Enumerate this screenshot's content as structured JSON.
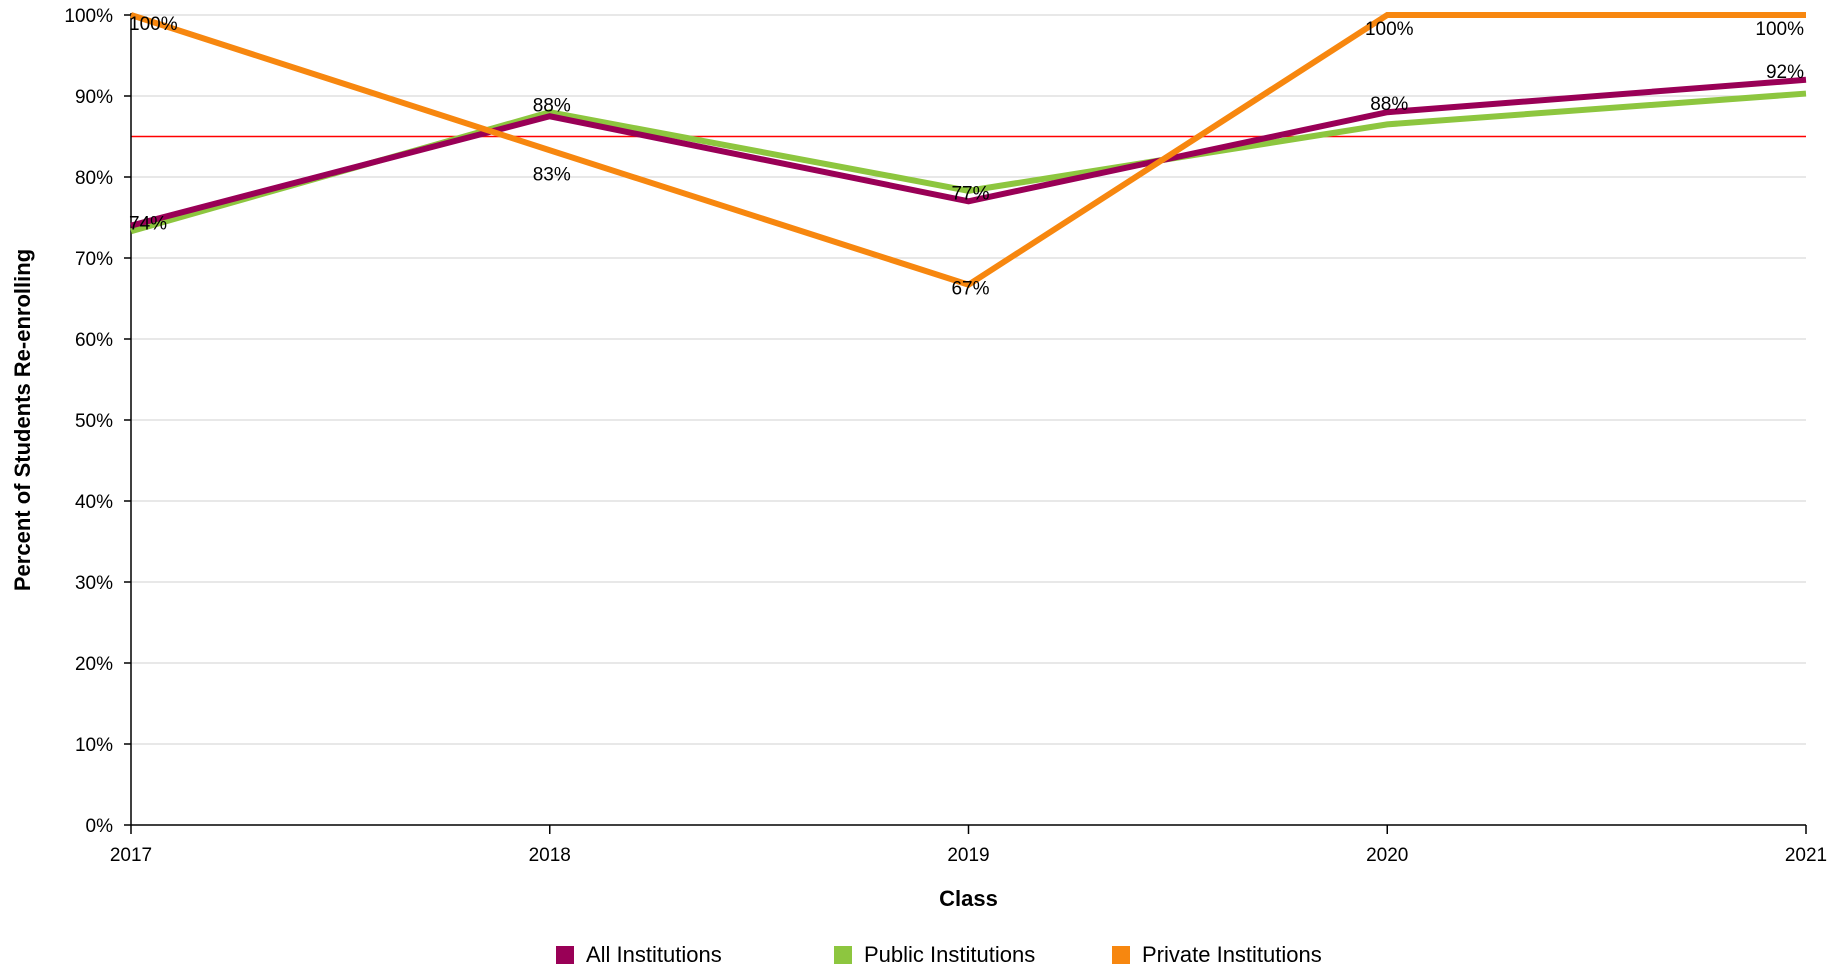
{
  "chart_data": {
    "type": "line",
    "title": "",
    "xlabel": "Class",
    "ylabel": "Percent of Students Re-enrolling",
    "categories": [
      "2017",
      "2018",
      "2019",
      "2020",
      "2021"
    ],
    "ylim": [
      0,
      100
    ],
    "yticks": [
      "0%",
      "10%",
      "20%",
      "30%",
      "40%",
      "50%",
      "60%",
      "70%",
      "80%",
      "90%",
      "100%"
    ],
    "grid": true,
    "legend_position": "bottom",
    "reference_line": {
      "value": 85,
      "color": "#ff0000"
    },
    "series": [
      {
        "name": "All Institutions",
        "color": "#990056",
        "values": [
          74,
          87.5,
          77,
          88,
          92
        ],
        "labels": [
          "74%",
          "88%",
          "77%",
          "88%",
          "92%"
        ]
      },
      {
        "name": "Public Institutions",
        "color": "#8dc63f",
        "values": [
          73.3,
          88,
          78.3,
          86.5,
          90.3
        ],
        "labels": [
          "",
          "",
          "",
          "",
          ""
        ]
      },
      {
        "name": "Private Institutions",
        "color": "#f7870f",
        "values": [
          100,
          83.3,
          66.7,
          100,
          100
        ],
        "labels": [
          "100%",
          "83%",
          "67%",
          "100%",
          "100%"
        ]
      }
    ]
  }
}
